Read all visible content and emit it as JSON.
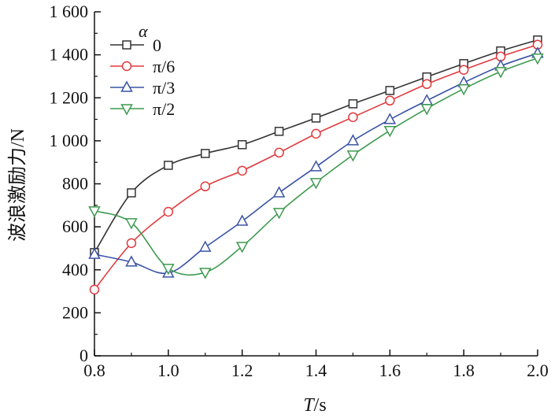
{
  "chart_data": {
    "type": "line",
    "title": "",
    "xlabel_italic": "T",
    "xlabel_unit": "/s",
    "ylabel": "波浪激励力/N",
    "xlim": [
      0.8,
      2.0
    ],
    "ylim": [
      0,
      1600
    ],
    "xticks": [
      0.8,
      1.0,
      1.2,
      1.4,
      1.6,
      1.8,
      2.0
    ],
    "xtick_labels": [
      "0.8",
      "1.0",
      "1.2",
      "1.4",
      "1.6",
      "1.8",
      "2.0"
    ],
    "yticks": [
      0,
      200,
      400,
      600,
      800,
      1000,
      1200,
      1400,
      1600
    ],
    "ytick_labels": [
      "0",
      "200",
      "400",
      "600",
      "800",
      "1 000",
      "1 200",
      "1 400",
      "1 600"
    ],
    "legend_title": "α",
    "legend_position": "top-left",
    "grid": false,
    "x": [
      0.8,
      0.9,
      1.0,
      1.1,
      1.2,
      1.3,
      1.4,
      1.5,
      1.6,
      1.7,
      1.8,
      1.9,
      2.0
    ],
    "series": [
      {
        "name": "0",
        "color": "#333333",
        "marker": "square",
        "values": [
          480,
          758,
          886,
          941,
          982,
          1044,
          1106,
          1172,
          1234,
          1297,
          1359,
          1418,
          1469
        ]
      },
      {
        "name": "π/6",
        "color": "#e03a3e",
        "marker": "circle",
        "values": [
          308,
          524,
          670,
          788,
          861,
          945,
          1033,
          1110,
          1187,
          1264,
          1330,
          1392,
          1447
        ]
      },
      {
        "name": "π/3",
        "color": "#3a53a4",
        "marker": "triangle-up",
        "values": [
          472,
          436,
          385,
          505,
          626,
          758,
          879,
          1000,
          1099,
          1187,
          1271,
          1348,
          1407
        ]
      },
      {
        "name": "π/2",
        "color": "#3d9a4f",
        "marker": "triangle-down",
        "values": [
          674,
          619,
          407,
          388,
          509,
          667,
          806,
          934,
          1048,
          1150,
          1242,
          1322,
          1385
        ]
      }
    ]
  }
}
